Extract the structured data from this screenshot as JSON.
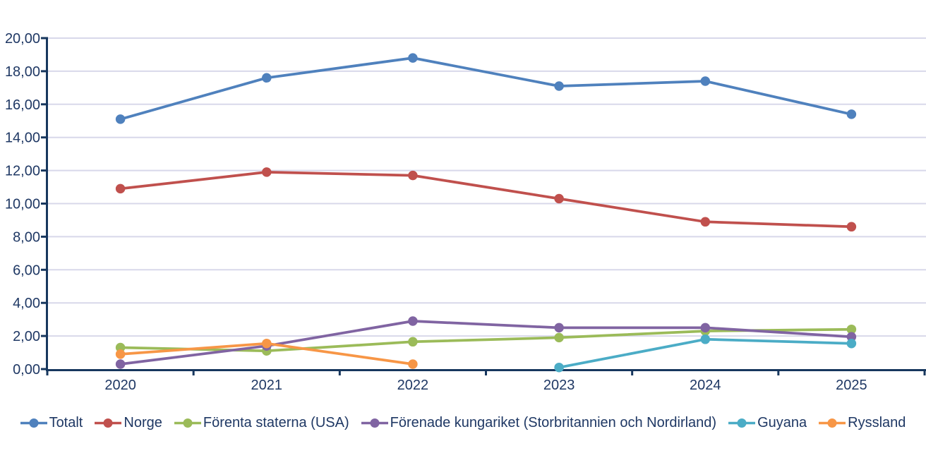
{
  "chart_data": {
    "type": "line",
    "title": "",
    "xlabel": "",
    "ylabel": "",
    "categories": [
      "2020",
      "2021",
      "2022",
      "2023",
      "2024",
      "2025"
    ],
    "y_ticks": [
      "0,00",
      "2,00",
      "4,00",
      "6,00",
      "8,00",
      "10,00",
      "12,00",
      "14,00",
      "16,00",
      "18,00",
      "20,00"
    ],
    "ylim": [
      0,
      20
    ],
    "y_step": 2,
    "grid": true,
    "legend_position": "bottom",
    "series": [
      {
        "name": "Totalt",
        "color": "#4F81BD",
        "values": [
          15.1,
          17.6,
          18.8,
          17.1,
          17.4,
          15.4
        ]
      },
      {
        "name": "Norge",
        "color": "#C0504D",
        "values": [
          10.9,
          11.9,
          11.7,
          10.3,
          8.9,
          8.6
        ]
      },
      {
        "name": "Förenta staterna (USA)",
        "color": "#9BBB59",
        "values": [
          1.3,
          1.1,
          1.65,
          1.9,
          2.3,
          2.4
        ]
      },
      {
        "name": "Förenade kungariket (Storbritannien och Nordirland)",
        "color": "#8064A2",
        "values": [
          0.3,
          1.4,
          2.9,
          2.5,
          2.5,
          1.95
        ]
      },
      {
        "name": "Guyana",
        "color": "#4BACC6",
        "values": [
          null,
          null,
          null,
          0.1,
          1.8,
          1.55
        ]
      },
      {
        "name": "Ryssland",
        "color": "#F79646",
        "values": [
          0.9,
          1.55,
          0.3,
          null,
          null,
          null
        ]
      }
    ]
  },
  "colors": {
    "axis": "#17375E",
    "tick_label": "#1F3864",
    "gridline": "#D8D8EA",
    "background": "#FFFFFF"
  }
}
